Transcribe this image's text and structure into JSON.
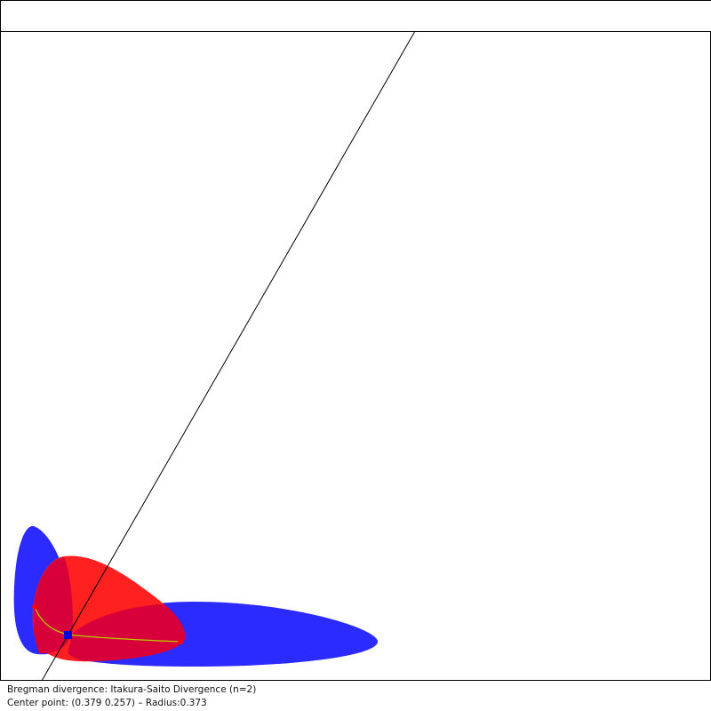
{
  "status": {
    "divergence_line": "Bregman divergence: Itakura-Saito Divergence (n=2)",
    "center_line": "Center point: (0.379 0.257) –  Radius:0.373"
  },
  "colors": {
    "ball_blue": "#2b2bff",
    "ball_red": "#ff2020",
    "overlap": "#d8003a",
    "geodesic": "#b5d000",
    "center_marker": "#0000dd",
    "endpoint_marker": "#ff0000",
    "line": "#000000"
  }
}
